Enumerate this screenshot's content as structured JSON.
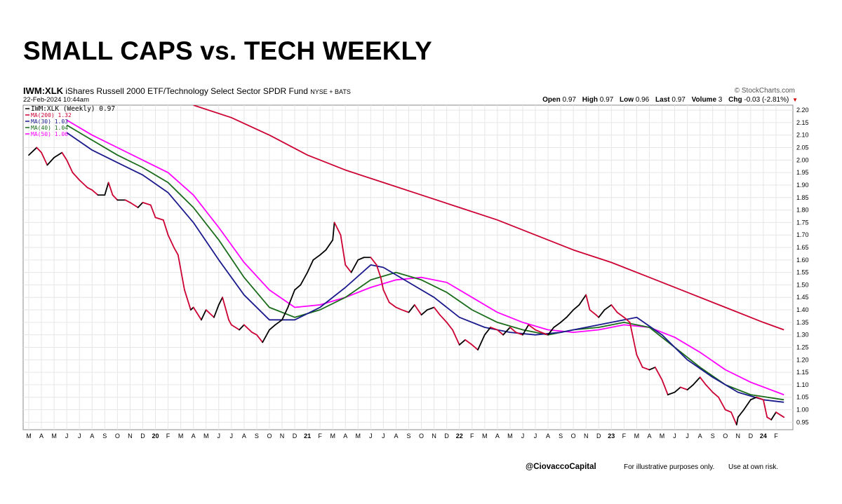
{
  "page_title": "SMALL CAPS vs. TECH WEEKLY",
  "header": {
    "symbol": "IWM:XLK",
    "description": "iShares Russell 2000 ETF/Technology Select Sector SPDR Fund",
    "exchange": "NYSE + BATS",
    "date": "22-Feb-2024 10:44am",
    "brand": "© StockCharts.com",
    "stats": [
      {
        "label": "Open",
        "value": "0.97"
      },
      {
        "label": "High",
        "value": "0.97"
      },
      {
        "label": "Low",
        "value": "0.96"
      },
      {
        "label": "Last",
        "value": "0.97"
      },
      {
        "label": "Volume",
        "value": "3"
      },
      {
        "label": "Chg",
        "value": "-0.03 (-2.81%)"
      }
    ]
  },
  "footer": {
    "handle": "@CiovaccoCapital",
    "disclaimer1": "For illustrative purposes only.",
    "disclaimer2": "Use at own risk."
  },
  "colors": {
    "ratio_up": "#000000",
    "ratio_down": "#cc0033",
    "ma200": "#cc0033",
    "ma30": "#1a1a8c",
    "ma40": "#1a6b1a",
    "ma50": "#ff00ff",
    "grid": "#e6e6e6"
  },
  "chart_data": {
    "type": "line",
    "ylim": [
      0.92,
      2.22
    ],
    "yticks": [
      "0.95",
      "1.00",
      "1.05",
      "1.10",
      "1.15",
      "1.20",
      "1.25",
      "1.30",
      "1.35",
      "1.40",
      "1.45",
      "1.50",
      "1.55",
      "1.60",
      "1.65",
      "1.70",
      "1.75",
      "1.80",
      "1.85",
      "1.90",
      "1.95",
      "2.00",
      "2.05",
      "2.10",
      "2.15",
      "2.20"
    ],
    "x_range": [
      "2019-03",
      "2024-02"
    ],
    "x_month_labels": [
      "M",
      "A",
      "M",
      "J",
      "J",
      "A",
      "S",
      "O",
      "N",
      "D",
      "20",
      "F",
      "M",
      "A",
      "M",
      "J",
      "J",
      "A",
      "S",
      "O",
      "N",
      "D",
      "21",
      "F",
      "M",
      "A",
      "M",
      "J",
      "J",
      "A",
      "S",
      "O",
      "N",
      "D",
      "22",
      "F",
      "M",
      "A",
      "M",
      "J",
      "J",
      "A",
      "S",
      "O",
      "N",
      "D",
      "23",
      "F",
      "M",
      "A",
      "M",
      "J",
      "J",
      "A",
      "S",
      "O",
      "N",
      "D",
      "24",
      "F"
    ],
    "legend": [
      {
        "name": "IWM:XLK (Weekly)",
        "value": "0.97"
      },
      {
        "name": "MA(200)",
        "value": "1.32"
      },
      {
        "name": "MA(30)",
        "value": "1.03"
      },
      {
        "name": "MA(40)",
        "value": "1.04"
      },
      {
        "name": "MA(50)",
        "value": "1.06"
      }
    ],
    "series": [
      {
        "name": "IWM:XLK (Weekly)",
        "points": [
          [
            "2019-03",
            2.02
          ],
          [
            "2019-03-20",
            2.05
          ],
          [
            "2019-04",
            2.03
          ],
          [
            "2019-04-15",
            1.98
          ],
          [
            "2019-05",
            2.01
          ],
          [
            "2019-05-20",
            2.03
          ],
          [
            "2019-06",
            2.0
          ],
          [
            "2019-06-15",
            1.95
          ],
          [
            "2019-07",
            1.92
          ],
          [
            "2019-07-20",
            1.89
          ],
          [
            "2019-08",
            1.88
          ],
          [
            "2019-08-15",
            1.86
          ],
          [
            "2019-09",
            1.86
          ],
          [
            "2019-09-10",
            1.91
          ],
          [
            "2019-09-20",
            1.86
          ],
          [
            "2019-10",
            1.84
          ],
          [
            "2019-10-20",
            1.84
          ],
          [
            "2019-11",
            1.83
          ],
          [
            "2019-11-20",
            1.81
          ],
          [
            "2019-12",
            1.83
          ],
          [
            "2019-12-20",
            1.82
          ],
          [
            "2020-01",
            1.77
          ],
          [
            "2020-01-20",
            1.76
          ],
          [
            "2020-02",
            1.7
          ],
          [
            "2020-02-15",
            1.65
          ],
          [
            "2020-02-25",
            1.62
          ],
          [
            "2020-03-10",
            1.48
          ],
          [
            "2020-03-25",
            1.4
          ],
          [
            "2020-04",
            1.41
          ],
          [
            "2020-04-20",
            1.36
          ],
          [
            "2020-05",
            1.4
          ],
          [
            "2020-05-20",
            1.37
          ],
          [
            "2020-06",
            1.42
          ],
          [
            "2020-06-10",
            1.45
          ],
          [
            "2020-06-25",
            1.36
          ],
          [
            "2020-07",
            1.34
          ],
          [
            "2020-07-20",
            1.32
          ],
          [
            "2020-08",
            1.34
          ],
          [
            "2020-08-20",
            1.31
          ],
          [
            "2020-09",
            1.3
          ],
          [
            "2020-09-15",
            1.27
          ],
          [
            "2020-10",
            1.32
          ],
          [
            "2020-10-15",
            1.34
          ],
          [
            "2020-11",
            1.36
          ],
          [
            "2020-11-15",
            1.41
          ],
          [
            "2020-12",
            1.48
          ],
          [
            "2020-12-15",
            1.5
          ],
          [
            "2021-01",
            1.55
          ],
          [
            "2021-01-15",
            1.6
          ],
          [
            "2021-02",
            1.62
          ],
          [
            "2021-02-15",
            1.64
          ],
          [
            "2021-03",
            1.68
          ],
          [
            "2021-03-05",
            1.75
          ],
          [
            "2021-03-20",
            1.7
          ],
          [
            "2021-04",
            1.58
          ],
          [
            "2021-04-15",
            1.55
          ],
          [
            "2021-05",
            1.6
          ],
          [
            "2021-05-15",
            1.61
          ],
          [
            "2021-06",
            1.61
          ],
          [
            "2021-06-15",
            1.58
          ],
          [
            "2021-06-25",
            1.53
          ],
          [
            "2021-07",
            1.48
          ],
          [
            "2021-07-15",
            1.43
          ],
          [
            "2021-08",
            1.41
          ],
          [
            "2021-08-15",
            1.4
          ],
          [
            "2021-09",
            1.39
          ],
          [
            "2021-09-15",
            1.42
          ],
          [
            "2021-10",
            1.38
          ],
          [
            "2021-10-15",
            1.4
          ],
          [
            "2021-11",
            1.41
          ],
          [
            "2021-11-15",
            1.38
          ],
          [
            "2021-12",
            1.35
          ],
          [
            "2021-12-15",
            1.32
          ],
          [
            "2022-01",
            1.26
          ],
          [
            "2022-01-15",
            1.28
          ],
          [
            "2022-02",
            1.26
          ],
          [
            "2022-02-15",
            1.24
          ],
          [
            "2022-03",
            1.3
          ],
          [
            "2022-03-15",
            1.33
          ],
          [
            "2022-04",
            1.32
          ],
          [
            "2022-04-15",
            1.3
          ],
          [
            "2022-05",
            1.33
          ],
          [
            "2022-05-15",
            1.31
          ],
          [
            "2022-06",
            1.3
          ],
          [
            "2022-06-15",
            1.34
          ],
          [
            "2022-07",
            1.32
          ],
          [
            "2022-07-15",
            1.31
          ],
          [
            "2022-08",
            1.3
          ],
          [
            "2022-08-15",
            1.33
          ],
          [
            "2022-09",
            1.35
          ],
          [
            "2022-09-15",
            1.37
          ],
          [
            "2022-10",
            1.4
          ],
          [
            "2022-10-15",
            1.42
          ],
          [
            "2022-11",
            1.46
          ],
          [
            "2022-11-10",
            1.4
          ],
          [
            "2022-11-25",
            1.38
          ],
          [
            "2022-12",
            1.37
          ],
          [
            "2022-12-15",
            1.4
          ],
          [
            "2023-01",
            1.42
          ],
          [
            "2023-01-15",
            1.39
          ],
          [
            "2023-02",
            1.37
          ],
          [
            "2023-02-15",
            1.35
          ],
          [
            "2023-03",
            1.22
          ],
          [
            "2023-03-15",
            1.17
          ],
          [
            "2023-04",
            1.16
          ],
          [
            "2023-04-15",
            1.17
          ],
          [
            "2023-05",
            1.12
          ],
          [
            "2023-05-15",
            1.06
          ],
          [
            "2023-06",
            1.07
          ],
          [
            "2023-06-15",
            1.09
          ],
          [
            "2023-07",
            1.08
          ],
          [
            "2023-07-15",
            1.1
          ],
          [
            "2023-08",
            1.13
          ],
          [
            "2023-08-15",
            1.1
          ],
          [
            "2023-09",
            1.07
          ],
          [
            "2023-09-15",
            1.05
          ],
          [
            "2023-10",
            1.0
          ],
          [
            "2023-10-15",
            0.99
          ],
          [
            "2023-10-28",
            0.94
          ],
          [
            "2023-11",
            0.97
          ],
          [
            "2023-11-15",
            1.0
          ],
          [
            "2023-12",
            1.04
          ],
          [
            "2023-12-15",
            1.05
          ],
          [
            "2024-01",
            1.04
          ],
          [
            "2024-01-10",
            0.97
          ],
          [
            "2024-01-20",
            0.96
          ],
          [
            "2024-02",
            0.99
          ],
          [
            "2024-02-20",
            0.97
          ]
        ]
      },
      {
        "name": "MA(200)",
        "points": [
          [
            "2020-04",
            2.22
          ],
          [
            "2020-07",
            2.17
          ],
          [
            "2020-10",
            2.1
          ],
          [
            "2021-01",
            2.02
          ],
          [
            "2021-04",
            1.96
          ],
          [
            "2021-07",
            1.91
          ],
          [
            "2021-10",
            1.86
          ],
          [
            "2022-01",
            1.81
          ],
          [
            "2022-04",
            1.76
          ],
          [
            "2022-07",
            1.7
          ],
          [
            "2022-10",
            1.64
          ],
          [
            "2023-01",
            1.59
          ],
          [
            "2023-04",
            1.53
          ],
          [
            "2023-07",
            1.47
          ],
          [
            "2023-10",
            1.41
          ],
          [
            "2024-01",
            1.35
          ],
          [
            "2024-02-20",
            1.32
          ]
        ]
      },
      {
        "name": "MA(30)",
        "points": [
          [
            "2019-06",
            2.11
          ],
          [
            "2019-08",
            2.04
          ],
          [
            "2019-10",
            1.99
          ],
          [
            "2019-12",
            1.94
          ],
          [
            "2020-02",
            1.87
          ],
          [
            "2020-04",
            1.75
          ],
          [
            "2020-06",
            1.6
          ],
          [
            "2020-08",
            1.46
          ],
          [
            "2020-10",
            1.36
          ],
          [
            "2020-12",
            1.36
          ],
          [
            "2021-02",
            1.41
          ],
          [
            "2021-04",
            1.49
          ],
          [
            "2021-06",
            1.58
          ],
          [
            "2021-07",
            1.57
          ],
          [
            "2021-09",
            1.51
          ],
          [
            "2021-11",
            1.45
          ],
          [
            "2022-01",
            1.37
          ],
          [
            "2022-03",
            1.33
          ],
          [
            "2022-05",
            1.31
          ],
          [
            "2022-07",
            1.3
          ],
          [
            "2022-09",
            1.31
          ],
          [
            "2022-11",
            1.33
          ],
          [
            "2023-01",
            1.35
          ],
          [
            "2023-03",
            1.37
          ],
          [
            "2023-05",
            1.3
          ],
          [
            "2023-07",
            1.2
          ],
          [
            "2023-09",
            1.13
          ],
          [
            "2023-11",
            1.07
          ],
          [
            "2024-01",
            1.04
          ],
          [
            "2024-02-20",
            1.03
          ]
        ]
      },
      {
        "name": "MA(40)",
        "points": [
          [
            "2019-06",
            2.14
          ],
          [
            "2019-08",
            2.08
          ],
          [
            "2019-10",
            2.02
          ],
          [
            "2019-12",
            1.97
          ],
          [
            "2020-02",
            1.91
          ],
          [
            "2020-04",
            1.81
          ],
          [
            "2020-06",
            1.68
          ],
          [
            "2020-08",
            1.53
          ],
          [
            "2020-10",
            1.41
          ],
          [
            "2020-12",
            1.37
          ],
          [
            "2021-02",
            1.4
          ],
          [
            "2021-04",
            1.45
          ],
          [
            "2021-06",
            1.52
          ],
          [
            "2021-08",
            1.55
          ],
          [
            "2021-10",
            1.52
          ],
          [
            "2021-12",
            1.47
          ],
          [
            "2022-02",
            1.4
          ],
          [
            "2022-04",
            1.35
          ],
          [
            "2022-06",
            1.32
          ],
          [
            "2022-08",
            1.3
          ],
          [
            "2022-10",
            1.32
          ],
          [
            "2022-12",
            1.33
          ],
          [
            "2023-02",
            1.35
          ],
          [
            "2023-04",
            1.33
          ],
          [
            "2023-06",
            1.25
          ],
          [
            "2023-08",
            1.17
          ],
          [
            "2023-10",
            1.1
          ],
          [
            "2023-12",
            1.06
          ],
          [
            "2024-02-20",
            1.04
          ]
        ]
      },
      {
        "name": "MA(50)",
        "points": [
          [
            "2019-06",
            2.16
          ],
          [
            "2019-08",
            2.1
          ],
          [
            "2019-10",
            2.05
          ],
          [
            "2019-12",
            2.0
          ],
          [
            "2020-02",
            1.95
          ],
          [
            "2020-04",
            1.86
          ],
          [
            "2020-06",
            1.73
          ],
          [
            "2020-08",
            1.59
          ],
          [
            "2020-10",
            1.48
          ],
          [
            "2020-12",
            1.41
          ],
          [
            "2021-02",
            1.42
          ],
          [
            "2021-04",
            1.45
          ],
          [
            "2021-06",
            1.49
          ],
          [
            "2021-08",
            1.52
          ],
          [
            "2021-10",
            1.53
          ],
          [
            "2021-12",
            1.51
          ],
          [
            "2022-02",
            1.45
          ],
          [
            "2022-04",
            1.39
          ],
          [
            "2022-06",
            1.35
          ],
          [
            "2022-08",
            1.32
          ],
          [
            "2022-10",
            1.31
          ],
          [
            "2022-12",
            1.32
          ],
          [
            "2023-02",
            1.34
          ],
          [
            "2023-04",
            1.33
          ],
          [
            "2023-06",
            1.29
          ],
          [
            "2023-08",
            1.23
          ],
          [
            "2023-10",
            1.16
          ],
          [
            "2023-12",
            1.11
          ],
          [
            "2024-02-20",
            1.06
          ]
        ]
      }
    ]
  }
}
